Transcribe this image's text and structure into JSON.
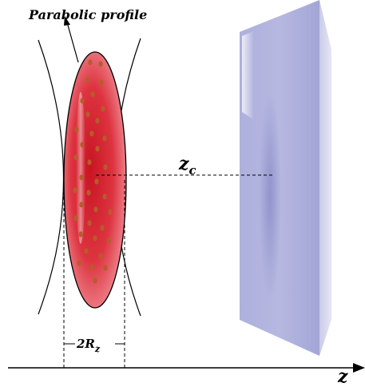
{
  "labels": {
    "profile": "Parabolic profile",
    "zc_main": "z",
    "zc_sub": "c",
    "width_main": "2R",
    "width_sub": "z",
    "axis": "z"
  },
  "colors": {
    "ellipse_core": "#d8202c",
    "ellipse_edge": "#f0a0a6",
    "particles": "#b55d2a",
    "plate_face": "#aeb0dc",
    "plate_side": "#d4d5ee",
    "plate_top": "#e3e4f5"
  },
  "icons": {
    "particle": "particle-dot",
    "arrow": "arrow-head"
  }
}
